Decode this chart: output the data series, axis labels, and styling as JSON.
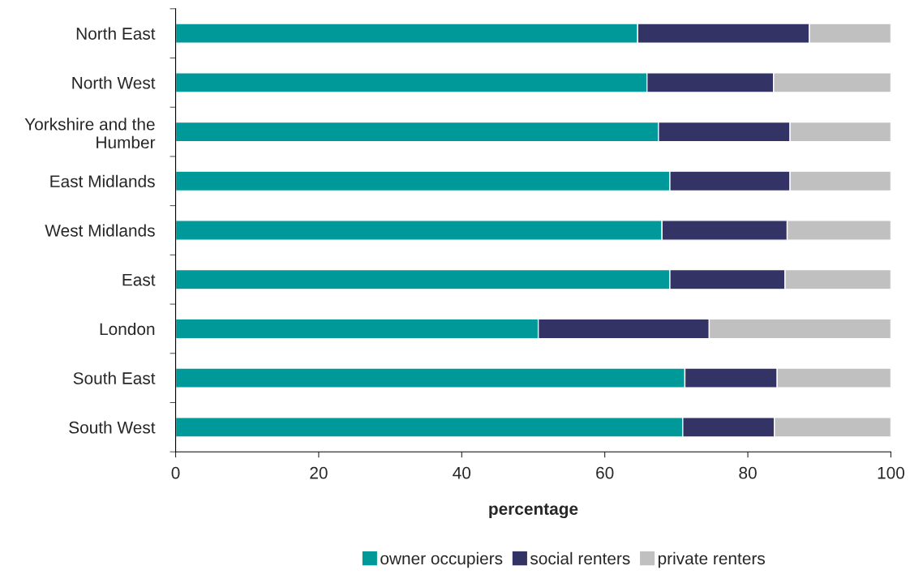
{
  "chart_data": {
    "type": "bar",
    "orientation": "horizontal",
    "stacked": true,
    "xlabel": "percentage",
    "categories": [
      "North East",
      "North West",
      "Yorkshire and the\nHumber",
      "East Midlands",
      "West Midlands",
      "East",
      "London",
      "South East",
      "South West"
    ],
    "series": [
      {
        "name": "owner occupiers",
        "color": "#009999",
        "values": [
          64.6,
          65.9,
          67.5,
          69.1,
          68.0,
          69.1,
          50.7,
          71.2,
          70.9
        ]
      },
      {
        "name": "social renters",
        "color": "#333366",
        "values": [
          24.0,
          17.7,
          18.4,
          16.8,
          17.5,
          16.1,
          23.9,
          12.9,
          12.8
        ]
      },
      {
        "name": "private renters",
        "color": "#c0c0c0",
        "values": [
          11.4,
          16.4,
          14.1,
          14.1,
          14.5,
          14.8,
          25.4,
          15.9,
          16.3
        ]
      }
    ],
    "xlim": [
      0,
      100
    ],
    "xticks": [
      0,
      20,
      40,
      60,
      80,
      100
    ],
    "grid": false,
    "legend": "bottom"
  }
}
